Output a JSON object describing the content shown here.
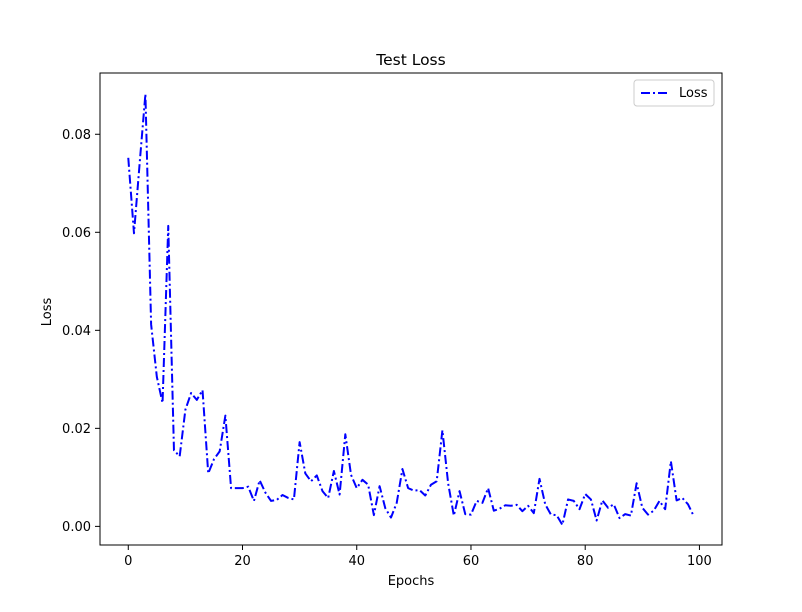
{
  "chart_data": {
    "type": "line",
    "title": "Test Loss",
    "xlabel": "Epochs",
    "ylabel": "Loss",
    "xlim": [
      -4.95,
      103.95
    ],
    "ylim": [
      -0.0038,
      0.0925
    ],
    "xticks": [
      0,
      20,
      40,
      60,
      80,
      100
    ],
    "yticks": [
      0.0,
      0.02,
      0.04,
      0.06,
      0.08
    ],
    "ytick_labels": [
      "0.00",
      "0.02",
      "0.04",
      "0.06",
      "0.08"
    ],
    "grid": false,
    "legend_position": "top-right",
    "series": [
      {
        "name": "Loss",
        "color": "#0000ff",
        "linestyle": "dashdot",
        "x": [
          0,
          1,
          2,
          3,
          4,
          5,
          6,
          7,
          8,
          9,
          10,
          11,
          12,
          13,
          14,
          15,
          16,
          17,
          18,
          19,
          20,
          21,
          22,
          23,
          24,
          25,
          26,
          27,
          28,
          29,
          30,
          31,
          32,
          33,
          34,
          35,
          36,
          37,
          38,
          39,
          40,
          41,
          42,
          43,
          44,
          45,
          46,
          47,
          48,
          49,
          50,
          51,
          52,
          53,
          54,
          55,
          56,
          57,
          58,
          59,
          60,
          61,
          62,
          63,
          64,
          65,
          66,
          67,
          68,
          69,
          70,
          71,
          72,
          73,
          74,
          75,
          76,
          77,
          78,
          79,
          80,
          81,
          82,
          83,
          84,
          85,
          86,
          87,
          88,
          89,
          90,
          91,
          92,
          93,
          94,
          95,
          96,
          97,
          98,
          99
        ],
        "y": [
          0.0752,
          0.0598,
          0.0742,
          0.0882,
          0.0412,
          0.0305,
          0.0252,
          0.0613,
          0.0155,
          0.0143,
          0.0238,
          0.0272,
          0.0258,
          0.0278,
          0.0108,
          0.0137,
          0.0153,
          0.0226,
          0.0078,
          0.0078,
          0.0078,
          0.0081,
          0.0052,
          0.0094,
          0.0069,
          0.0052,
          0.0054,
          0.0064,
          0.0058,
          0.0055,
          0.0172,
          0.0108,
          0.0092,
          0.0104,
          0.0072,
          0.0058,
          0.0113,
          0.0065,
          0.0188,
          0.0105,
          0.0078,
          0.0095,
          0.0085,
          0.0023,
          0.0082,
          0.0037,
          0.0018,
          0.0048,
          0.0117,
          0.0078,
          0.0073,
          0.0074,
          0.0063,
          0.0085,
          0.0092,
          0.0196,
          0.0088,
          0.0022,
          0.0072,
          0.0025,
          0.0024,
          0.0052,
          0.0048,
          0.0078,
          0.0032,
          0.0036,
          0.0043,
          0.0042,
          0.0044,
          0.0031,
          0.0042,
          0.0027,
          0.0097,
          0.0045,
          0.0024,
          0.0023,
          0.0003,
          0.0055,
          0.0052,
          0.0035,
          0.0066,
          0.0055,
          0.0012,
          0.0053,
          0.0038,
          0.0045,
          0.0017,
          0.0025,
          0.0022,
          0.0088,
          0.0038,
          0.0024,
          0.0032,
          0.0052,
          0.0035,
          0.0133,
          0.0053,
          0.0058,
          0.0045,
          0.0021
        ]
      }
    ]
  }
}
